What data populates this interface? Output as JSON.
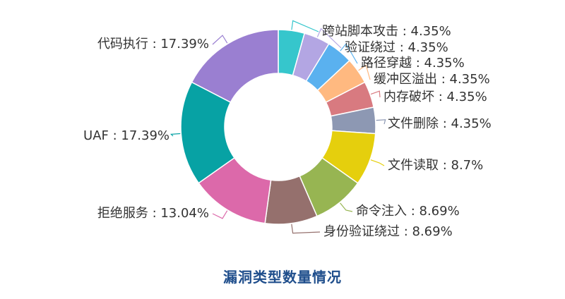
{
  "caption": "漏洞类型数量情况",
  "chart_data": {
    "type": "pie",
    "donut": true,
    "legend": "none",
    "slices": [
      {
        "label": "跨站脚本攻击",
        "value": 4.35,
        "value_text": "4.35%",
        "color": "#36c6cc"
      },
      {
        "label": "验证绕过",
        "value": 4.35,
        "value_text": "4.35%",
        "color": "#b3a6e3"
      },
      {
        "label": "路径穿越",
        "value": 4.35,
        "value_text": "4.35%",
        "color": "#5ab1ef"
      },
      {
        "label": "缓冲区溢出",
        "value": 4.35,
        "value_text": "4.35%",
        "color": "#ffb980"
      },
      {
        "label": "内存破坏",
        "value": 4.35,
        "value_text": "4.35%",
        "color": "#d87a80"
      },
      {
        "label": "文件删除",
        "value": 4.35,
        "value_text": "4.35%",
        "color": "#8d98b3"
      },
      {
        "label": "文件读取",
        "value": 8.7,
        "value_text": "8.7%",
        "color": "#e5cf0d"
      },
      {
        "label": "命令注入",
        "value": 8.69,
        "value_text": "8.69%",
        "color": "#97b552"
      },
      {
        "label": "身份验证绕过",
        "value": 8.69,
        "value_text": "8.69%",
        "color": "#95706d"
      },
      {
        "label": "拒绝服务",
        "value": 13.04,
        "value_text": "13.04%",
        "color": "#dc69aa"
      },
      {
        "label": "UAF",
        "value": 17.39,
        "value_text": "17.39%",
        "color": "#07a2a4"
      },
      {
        "label": "代码执行",
        "value": 17.39,
        "value_text": "17.39%",
        "color": "#9a7fd1"
      }
    ]
  }
}
